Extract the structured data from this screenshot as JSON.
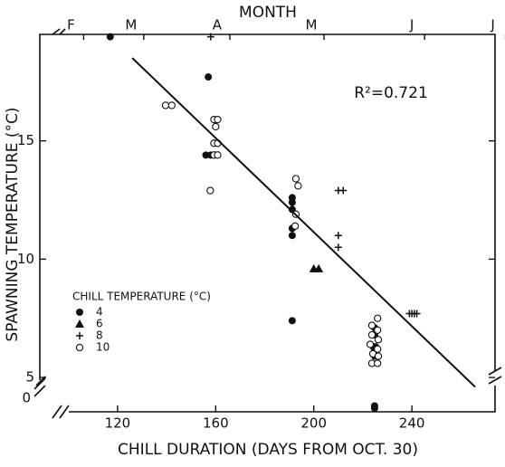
{
  "chart_data": {
    "type": "scatter",
    "top_axis_title": "MONTH",
    "x_label": "CHILL DURATION (DAYS FROM OCT. 30)",
    "y_label": "SPAWNING TEMPERATURE (°C)",
    "annotation": "R²=0.721",
    "legend_title": "CHILL TEMPERATURE (°C)",
    "y_origin_label": "0",
    "xlim": [
      88.3,
      273.9
    ],
    "ylim": [
      3.55,
      19.5
    ],
    "xticks": [
      120,
      160,
      200,
      240
    ],
    "yticks": [
      5,
      10,
      15
    ],
    "x2ticks": [
      {
        "value": 101,
        "label": "F"
      },
      {
        "value": 125.5,
        "label": "M"
      },
      {
        "value": 160.6,
        "label": "A"
      },
      {
        "value": 199,
        "label": "M"
      },
      {
        "value": 240,
        "label": "J"
      },
      {
        "value": 273,
        "label": "J"
      }
    ],
    "color": "#111111",
    "series": [
      {
        "name": "4",
        "marker": "filled-circle",
        "x": [
          117,
          157,
          156,
          158,
          191.2,
          191.2,
          191.2,
          191.2,
          191.2,
          191.2,
          224.8,
          224.8,
          224.2,
          224.8,
          225.2,
          224.8,
          224.8,
          224.8
        ],
        "y": [
          19.4,
          17.7,
          14.4,
          14.4,
          12.6,
          12.4,
          12.1,
          11.3,
          11.0,
          7.4,
          7.1,
          6.8,
          6.3,
          6.1,
          6.3,
          5.9,
          3.8,
          3.7
        ]
      },
      {
        "name": "6",
        "marker": "triangle",
        "x": [
          200,
          202
        ],
        "y": [
          9.6,
          9.6
        ]
      },
      {
        "name": "8",
        "marker": "plus",
        "x": [
          158,
          210,
          212,
          210,
          210,
          239,
          240,
          241,
          242
        ],
        "y": [
          19.4,
          12.9,
          12.9,
          11.0,
          10.5,
          7.7,
          7.7,
          7.7,
          7.7
        ]
      },
      {
        "name": "10",
        "marker": "open-circle",
        "x": [
          139.6,
          142.1,
          159.3,
          160.8,
          160,
          159.3,
          160.8,
          159.3,
          160.8,
          157.8,
          192.7,
          193.6,
          192.7,
          192.4,
          226,
          223.7,
          226,
          223.7,
          226.3,
          223,
          226,
          224.1,
          226.3,
          223.7,
          226
        ],
        "y": [
          16.5,
          16.5,
          15.9,
          15.9,
          15.6,
          14.9,
          14.9,
          14.4,
          14.4,
          12.9,
          13.4,
          13.1,
          11.9,
          11.4,
          7.5,
          7.2,
          7.0,
          6.8,
          6.6,
          6.4,
          6.2,
          6.0,
          5.9,
          5.6,
          5.6
        ]
      }
    ],
    "fit_line": {
      "x": [
        126,
        265.8
      ],
      "y": [
        18.5,
        4.6
      ]
    },
    "legend": "lower-left"
  }
}
